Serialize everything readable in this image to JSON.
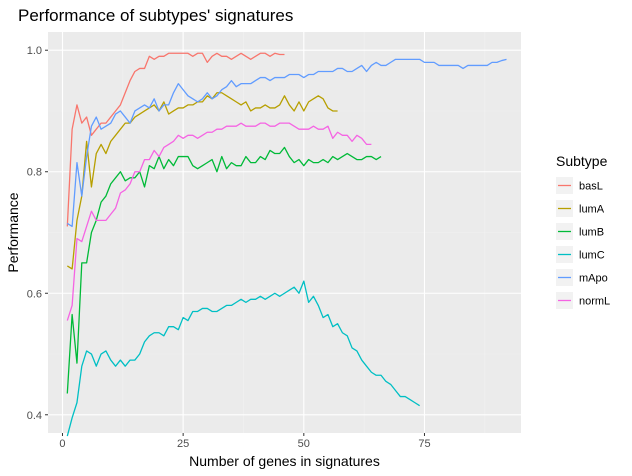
{
  "chart_data": {
    "type": "line",
    "title": "Performance of subtypes' signatures",
    "xlabel": "Number of genes in signatures",
    "ylabel": "Performance",
    "xlim": [
      -3,
      95
    ],
    "ylim": [
      0.37,
      1.03
    ],
    "x_ticks": [
      0,
      25,
      50,
      75
    ],
    "x_tick_labels": [
      "0",
      "25",
      "50",
      "75"
    ],
    "y_ticks": [
      0.4,
      0.6,
      0.8,
      1.0
    ],
    "y_tick_labels": [
      "0.4",
      "0.6",
      "0.8",
      "1.0"
    ],
    "grid": true,
    "legend": {
      "title": "Subtype",
      "position": "right"
    },
    "series": [
      {
        "name": "basL",
        "color": "#F8766D",
        "x": [
          1,
          2,
          3,
          4,
          5,
          6,
          7,
          8,
          9,
          10,
          11,
          12,
          13,
          14,
          15,
          16,
          17,
          18,
          19,
          20,
          21,
          22,
          23,
          24,
          25,
          26,
          27,
          28,
          29,
          30,
          31,
          32,
          33,
          34,
          35,
          36,
          37,
          38,
          39,
          40,
          41,
          42,
          43,
          44,
          45,
          46
        ],
        "values": [
          0.71,
          0.87,
          0.91,
          0.88,
          0.89,
          0.86,
          0.87,
          0.88,
          0.88,
          0.89,
          0.9,
          0.91,
          0.93,
          0.95,
          0.965,
          0.97,
          0.97,
          0.99,
          0.985,
          0.99,
          0.99,
          0.995,
          0.995,
          0.995,
          0.995,
          0.995,
          0.99,
          0.995,
          0.995,
          0.98,
          0.99,
          0.995,
          0.99,
          0.99,
          0.985,
          0.99,
          0.995,
          0.99,
          0.985,
          0.99,
          0.995,
          0.995,
          0.99,
          0.995,
          0.993,
          0.993
        ]
      },
      {
        "name": "lumA",
        "color": "#B79F00",
        "x": [
          1,
          2,
          3,
          4,
          5,
          6,
          7,
          8,
          9,
          10,
          11,
          12,
          13,
          14,
          15,
          16,
          17,
          18,
          19,
          20,
          21,
          22,
          23,
          24,
          25,
          26,
          27,
          28,
          29,
          30,
          31,
          32,
          33,
          34,
          35,
          36,
          37,
          38,
          39,
          40,
          41,
          42,
          43,
          44,
          45,
          46,
          47,
          48,
          49,
          50,
          51,
          52,
          53,
          54,
          55,
          56,
          57
        ],
        "values": [
          0.645,
          0.64,
          0.72,
          0.76,
          0.85,
          0.775,
          0.83,
          0.845,
          0.83,
          0.85,
          0.86,
          0.87,
          0.88,
          0.88,
          0.89,
          0.895,
          0.9,
          0.905,
          0.91,
          0.9,
          0.915,
          0.895,
          0.9,
          0.905,
          0.905,
          0.91,
          0.91,
          0.915,
          0.915,
          0.925,
          0.92,
          0.93,
          0.93,
          0.925,
          0.92,
          0.915,
          0.91,
          0.915,
          0.9,
          0.905,
          0.905,
          0.91,
          0.905,
          0.905,
          0.91,
          0.925,
          0.91,
          0.9,
          0.915,
          0.9,
          0.915,
          0.92,
          0.925,
          0.92,
          0.905,
          0.9,
          0.9
        ]
      },
      {
        "name": "lumB",
        "color": "#00BA38",
        "x": [
          1,
          2,
          3,
          4,
          5,
          6,
          7,
          8,
          9,
          10,
          11,
          12,
          13,
          14,
          15,
          16,
          17,
          18,
          19,
          20,
          21,
          22,
          23,
          24,
          25,
          26,
          27,
          28,
          29,
          30,
          31,
          32,
          33,
          34,
          35,
          36,
          37,
          38,
          39,
          40,
          41,
          42,
          43,
          44,
          45,
          46,
          47,
          48,
          49,
          50,
          51,
          52,
          53,
          54,
          55,
          56,
          57,
          58,
          59,
          60,
          61,
          62,
          63,
          64,
          65,
          66
        ],
        "values": [
          0.435,
          0.565,
          0.485,
          0.65,
          0.65,
          0.7,
          0.72,
          0.75,
          0.76,
          0.78,
          0.79,
          0.8,
          0.785,
          0.79,
          0.79,
          0.8,
          0.775,
          0.81,
          0.805,
          0.825,
          0.805,
          0.82,
          0.81,
          0.825,
          0.825,
          0.825,
          0.81,
          0.805,
          0.81,
          0.815,
          0.82,
          0.8,
          0.825,
          0.805,
          0.815,
          0.81,
          0.81,
          0.825,
          0.815,
          0.815,
          0.825,
          0.82,
          0.835,
          0.83,
          0.83,
          0.84,
          0.825,
          0.815,
          0.82,
          0.81,
          0.82,
          0.815,
          0.815,
          0.82,
          0.815,
          0.825,
          0.82,
          0.825,
          0.83,
          0.825,
          0.82,
          0.82,
          0.825,
          0.825,
          0.82,
          0.825
        ]
      },
      {
        "name": "lumC",
        "color": "#00BFC4",
        "x": [
          1,
          2,
          3,
          4,
          5,
          6,
          7,
          8,
          9,
          10,
          11,
          12,
          13,
          14,
          15,
          16,
          17,
          18,
          19,
          20,
          21,
          22,
          23,
          24,
          25,
          26,
          27,
          28,
          29,
          30,
          31,
          32,
          33,
          34,
          35,
          36,
          37,
          38,
          39,
          40,
          41,
          42,
          43,
          44,
          45,
          46,
          47,
          48,
          49,
          50,
          51,
          52,
          53,
          54,
          55,
          56,
          57,
          58,
          59,
          60,
          61,
          62,
          63,
          64,
          65,
          66,
          67,
          68,
          69,
          70,
          71,
          72,
          73,
          74
        ],
        "values": [
          0.365,
          0.395,
          0.42,
          0.48,
          0.505,
          0.5,
          0.48,
          0.5,
          0.505,
          0.49,
          0.48,
          0.49,
          0.48,
          0.49,
          0.49,
          0.5,
          0.52,
          0.53,
          0.535,
          0.535,
          0.53,
          0.545,
          0.545,
          0.54,
          0.56,
          0.555,
          0.57,
          0.57,
          0.575,
          0.575,
          0.57,
          0.57,
          0.575,
          0.58,
          0.58,
          0.585,
          0.59,
          0.585,
          0.59,
          0.59,
          0.595,
          0.59,
          0.595,
          0.6,
          0.595,
          0.6,
          0.605,
          0.61,
          0.6,
          0.62,
          0.585,
          0.595,
          0.58,
          0.56,
          0.565,
          0.545,
          0.55,
          0.535,
          0.53,
          0.51,
          0.505,
          0.49,
          0.48,
          0.47,
          0.465,
          0.465,
          0.455,
          0.45,
          0.44,
          0.43,
          0.43,
          0.425,
          0.42,
          0.415
        ]
      },
      {
        "name": "mApo",
        "color": "#619CFF",
        "x": [
          1,
          2,
          3,
          4,
          5,
          6,
          7,
          8,
          9,
          10,
          11,
          12,
          13,
          14,
          15,
          16,
          17,
          18,
          19,
          20,
          21,
          22,
          23,
          24,
          25,
          26,
          27,
          28,
          29,
          30,
          31,
          32,
          33,
          34,
          35,
          36,
          37,
          38,
          39,
          40,
          41,
          42,
          43,
          44,
          45,
          46,
          47,
          48,
          49,
          50,
          51,
          52,
          53,
          54,
          55,
          56,
          57,
          58,
          59,
          60,
          61,
          62,
          63,
          64,
          65,
          66,
          67,
          68,
          69,
          70,
          71,
          72,
          73,
          74,
          75,
          76,
          77,
          78,
          79,
          80,
          81,
          82,
          83,
          84,
          85,
          86,
          87,
          88,
          89,
          90,
          91,
          92
        ],
        "values": [
          0.715,
          0.71,
          0.815,
          0.76,
          0.825,
          0.875,
          0.89,
          0.87,
          0.875,
          0.88,
          0.895,
          0.9,
          0.89,
          0.88,
          0.9,
          0.905,
          0.91,
          0.905,
          0.92,
          0.9,
          0.91,
          0.91,
          0.93,
          0.945,
          0.935,
          0.925,
          0.92,
          0.915,
          0.92,
          0.93,
          0.92,
          0.925,
          0.935,
          0.94,
          0.95,
          0.94,
          0.945,
          0.945,
          0.945,
          0.95,
          0.955,
          0.955,
          0.95,
          0.955,
          0.955,
          0.955,
          0.96,
          0.96,
          0.96,
          0.955,
          0.96,
          0.96,
          0.965,
          0.965,
          0.965,
          0.965,
          0.97,
          0.97,
          0.965,
          0.965,
          0.97,
          0.975,
          0.965,
          0.975,
          0.98,
          0.975,
          0.975,
          0.98,
          0.985,
          0.985,
          0.985,
          0.985,
          0.985,
          0.985,
          0.98,
          0.98,
          0.98,
          0.975,
          0.975,
          0.975,
          0.975,
          0.975,
          0.97,
          0.975,
          0.975,
          0.975,
          0.975,
          0.975,
          0.98,
          0.98,
          0.983,
          0.985
        ]
      },
      {
        "name": "normL",
        "color": "#F564E3",
        "x": [
          1,
          2,
          3,
          4,
          5,
          6,
          7,
          8,
          9,
          10,
          11,
          12,
          13,
          14,
          15,
          16,
          17,
          18,
          19,
          20,
          21,
          22,
          23,
          24,
          25,
          26,
          27,
          28,
          29,
          30,
          31,
          32,
          33,
          34,
          35,
          36,
          37,
          38,
          39,
          40,
          41,
          42,
          43,
          44,
          45,
          46,
          47,
          48,
          49,
          50,
          51,
          52,
          53,
          54,
          55,
          56,
          57,
          58,
          59,
          60,
          61,
          62,
          63,
          64
        ],
        "values": [
          0.555,
          0.58,
          0.69,
          0.685,
          0.71,
          0.735,
          0.72,
          0.72,
          0.72,
          0.73,
          0.74,
          0.765,
          0.77,
          0.78,
          0.8,
          0.8,
          0.82,
          0.82,
          0.835,
          0.825,
          0.84,
          0.845,
          0.85,
          0.86,
          0.855,
          0.86,
          0.86,
          0.855,
          0.86,
          0.865,
          0.865,
          0.87,
          0.87,
          0.875,
          0.875,
          0.875,
          0.88,
          0.875,
          0.875,
          0.875,
          0.88,
          0.88,
          0.875,
          0.875,
          0.88,
          0.88,
          0.88,
          0.875,
          0.87,
          0.87,
          0.87,
          0.875,
          0.87,
          0.87,
          0.875,
          0.855,
          0.865,
          0.86,
          0.86,
          0.85,
          0.86,
          0.855,
          0.845,
          0.845
        ]
      }
    ]
  }
}
